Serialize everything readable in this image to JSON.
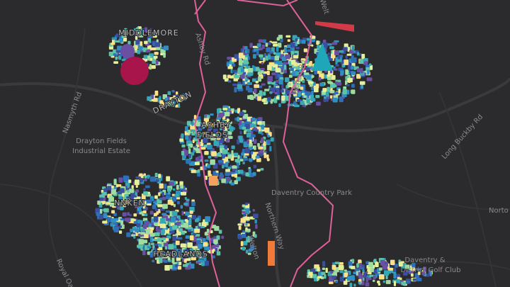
{
  "map": {
    "labels": {
      "middlemore": "MIDDLEMORE",
      "ashby_rd": "Ashby Rd",
      "welton_rd_top": "Welt",
      "drayton": "DRAYTON",
      "nasmyth_rd": "Nasmyth Rd",
      "industrial_1": "Drayton Fields",
      "industrial_2": "Industrial Estate",
      "ashby_fields_1": "ASHBY",
      "ashby_fields_2": "FIELDS",
      "country_park": "Daventry Country Park",
      "northern_way": "Northern Way",
      "long_buckby_rd": "Long Buckby Rd",
      "norton": "Norto",
      "linken": "NNKEN",
      "headlands": "HEADLANDS",
      "welton_rd_mid": "Welton Rd",
      "welton_low": "Welton",
      "golf_1": "Daventry &",
      "golf_2": "District Golf Club",
      "royal_oak": "Royal Oak"
    }
  }
}
